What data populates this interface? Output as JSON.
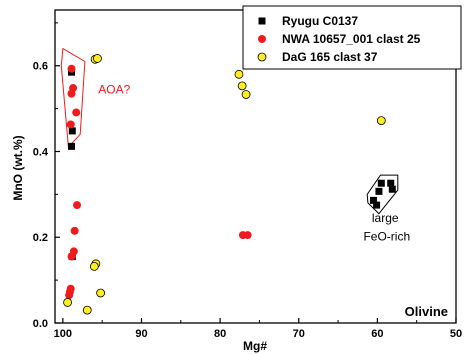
{
  "chart_data": {
    "type": "scatter",
    "title": "",
    "xlabel": "Mg#",
    "ylabel": "MnO (wt.%)",
    "xlim": [
      101,
      50
    ],
    "ylim": [
      0.0,
      0.73
    ],
    "x_ticks": [
      100,
      90,
      80,
      70,
      60,
      50
    ],
    "x_tick_labels": [
      "100",
      "90",
      "80",
      "70",
      "60",
      "50"
    ],
    "y_ticks": [
      0.0,
      0.2,
      0.4,
      0.6
    ],
    "y_tick_labels": [
      "0.0",
      "0.2",
      "0.4",
      "0.6"
    ],
    "legend_position": "top-right",
    "corner_label": "Olivine",
    "series": [
      {
        "name": "Ryugu C0137",
        "marker": "square",
        "color": "#000000",
        "points": [
          [
            98.9,
            0.585
          ],
          [
            98.8,
            0.448
          ],
          [
            98.9,
            0.412
          ],
          [
            98.8,
            0.155
          ],
          [
            59.5,
            0.326
          ],
          [
            59.8,
            0.307
          ],
          [
            58.3,
            0.326
          ],
          [
            58.1,
            0.312
          ],
          [
            60.5,
            0.286
          ],
          [
            60.1,
            0.275
          ]
        ]
      },
      {
        "name": "NWA 10657_001 clast 25",
        "marker": "circle",
        "color": "#ee1c1c",
        "points": [
          [
            98.9,
            0.593
          ],
          [
            98.9,
            0.535
          ],
          [
            98.7,
            0.548
          ],
          [
            98.3,
            0.491
          ],
          [
            99.0,
            0.463
          ],
          [
            98.2,
            0.275
          ],
          [
            98.5,
            0.215
          ],
          [
            98.6,
            0.167
          ],
          [
            98.9,
            0.155
          ],
          [
            99.0,
            0.08
          ],
          [
            99.1,
            0.073
          ],
          [
            99.2,
            0.065
          ],
          [
            77.1,
            0.205
          ],
          [
            76.5,
            0.205
          ]
        ]
      },
      {
        "name": "DaG 165 clast 37",
        "marker": "circle",
        "color": "#ffee22",
        "points": [
          [
            95.9,
            0.615
          ],
          [
            95.6,
            0.617
          ],
          [
            77.6,
            0.58
          ],
          [
            77.2,
            0.553
          ],
          [
            76.7,
            0.533
          ],
          [
            59.5,
            0.472
          ],
          [
            95.8,
            0.138
          ],
          [
            96.0,
            0.132
          ],
          [
            95.2,
            0.07
          ],
          [
            96.9,
            0.03
          ],
          [
            99.4,
            0.048
          ]
        ]
      }
    ],
    "annotations": [
      {
        "text": "AOA?",
        "color": "#ee1c1c",
        "x": 95.5,
        "y": 0.535
      },
      {
        "text": "large",
        "color": "#000000",
        "x": 59.0,
        "y": 0.235
      },
      {
        "text": "FeO-rich",
        "color": "#000000",
        "x": 58.8,
        "y": 0.192
      }
    ],
    "enclosures": [
      {
        "name": "AOA?",
        "color": "#ee1c1c",
        "points": [
          [
            100.0,
            0.64
          ],
          [
            97.2,
            0.61
          ],
          [
            97.8,
            0.44
          ],
          [
            99.3,
            0.41
          ],
          [
            100.2,
            0.6
          ]
        ]
      },
      {
        "name": "large FeO-rich",
        "color": "#000000",
        "points": [
          [
            61.2,
            0.28
          ],
          [
            59.8,
            0.255
          ],
          [
            57.4,
            0.31
          ],
          [
            57.4,
            0.345
          ],
          [
            59.6,
            0.345
          ],
          [
            61.3,
            0.3
          ]
        ]
      }
    ]
  }
}
